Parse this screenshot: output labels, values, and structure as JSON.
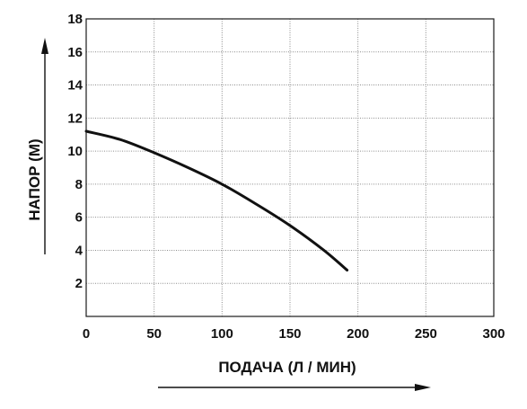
{
  "chart_data": {
    "type": "line",
    "xlabel": "ПОДАЧА (Л / МИН)",
    "ylabel": "НАПОР (М)",
    "xlim": [
      0,
      300
    ],
    "ylim": [
      0,
      18
    ],
    "x_ticks": [
      0,
      50,
      100,
      150,
      200,
      250,
      300
    ],
    "y_ticks": [
      2,
      4,
      6,
      8,
      10,
      12,
      14,
      16,
      18
    ],
    "grid": true,
    "series": [
      {
        "x": [
          0,
          25,
          50,
          75,
          100,
          125,
          150,
          175,
          192
        ],
        "y": [
          11.2,
          10.7,
          9.9,
          9.0,
          8.0,
          6.8,
          5.5,
          4.0,
          2.8
        ]
      }
    ]
  }
}
